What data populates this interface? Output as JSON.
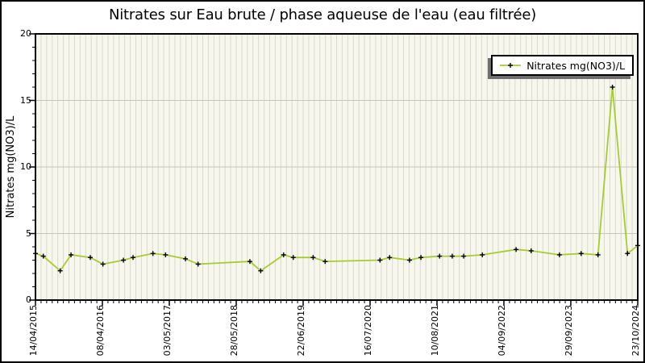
{
  "chart_data": {
    "type": "line",
    "title": "Nitrates sur Eau brute / phase aqueuse de l'eau (eau filtrée)",
    "ylabel": "Nitrates mg(NO3)/L",
    "xlabel": "",
    "ylim": [
      0,
      20
    ],
    "y_ticks": [
      0,
      5,
      10,
      15,
      20
    ],
    "y_minor_tick_interval": 1,
    "x_tick_labels": [
      "14/04/2015",
      "08/04/2016",
      "03/05/2017",
      "28/05/2018",
      "22/06/2019",
      "16/07/2020",
      "10/08/2021",
      "04/09/2022",
      "29/09/2023",
      "23/10/2024"
    ],
    "x_minor_divisions_per_major": 12,
    "h_gridlines_at": [
      5,
      10,
      15
    ],
    "legend": {
      "label": "Nitrates mg(NO3)/L",
      "position": "top-right",
      "marker": "plus"
    },
    "series": [
      {
        "name": "Nitrates mg(NO3)/L",
        "color": "#a6cc32",
        "marker": "plus",
        "marker_color": "#000000",
        "points": [
          {
            "x_frac": 0.0,
            "date_est": "2015-04-14",
            "y": 3.5
          },
          {
            "x_frac": 0.013,
            "date_est": "2015-05-30",
            "y": 3.3
          },
          {
            "x_frac": 0.041,
            "date_est": "2015-09-05",
            "y": 2.2
          },
          {
            "x_frac": 0.059,
            "date_est": "2015-11-05",
            "y": 3.4
          },
          {
            "x_frac": 0.091,
            "date_est": "2016-02-25",
            "y": 3.2
          },
          {
            "x_frac": 0.112,
            "date_est": "2016-05-09",
            "y": 2.7
          },
          {
            "x_frac": 0.146,
            "date_est": "2016-09-03",
            "y": 3.0
          },
          {
            "x_frac": 0.162,
            "date_est": "2016-10-29",
            "y": 3.2
          },
          {
            "x_frac": 0.195,
            "date_est": "2017-02-22",
            "y": 3.5
          },
          {
            "x_frac": 0.216,
            "date_est": "2017-05-03",
            "y": 3.4
          },
          {
            "x_frac": 0.249,
            "date_est": "2017-08-27",
            "y": 3.1
          },
          {
            "x_frac": 0.27,
            "date_est": "2017-11-10",
            "y": 2.7
          },
          {
            "x_frac": 0.356,
            "date_est": "2018-09-04",
            "y": 2.9
          },
          {
            "x_frac": 0.374,
            "date_est": "2018-11-04",
            "y": 2.2
          },
          {
            "x_frac": 0.412,
            "date_est": "2019-03-19",
            "y": 3.4
          },
          {
            "x_frac": 0.428,
            "date_est": "2019-05-14",
            "y": 3.2
          },
          {
            "x_frac": 0.461,
            "date_est": "2019-09-03",
            "y": 3.2
          },
          {
            "x_frac": 0.481,
            "date_est": "2019-11-12",
            "y": 2.9
          },
          {
            "x_frac": 0.572,
            "date_est": "2020-09-23",
            "y": 3.0
          },
          {
            "x_frac": 0.588,
            "date_est": "2020-11-18",
            "y": 3.2
          },
          {
            "x_frac": 0.621,
            "date_est": "2021-03-15",
            "y": 3.0
          },
          {
            "x_frac": 0.64,
            "date_est": "2021-05-19",
            "y": 3.2
          },
          {
            "x_frac": 0.671,
            "date_est": "2021-09-03",
            "y": 3.3
          },
          {
            "x_frac": 0.692,
            "date_est": "2021-11-17",
            "y": 3.3
          },
          {
            "x_frac": 0.711,
            "date_est": "2022-01-21",
            "y": 3.3
          },
          {
            "x_frac": 0.742,
            "date_est": "2022-05-08",
            "y": 3.4
          },
          {
            "x_frac": 0.798,
            "date_est": "2022-11-20",
            "y": 3.8
          },
          {
            "x_frac": 0.823,
            "date_est": "2023-02-16",
            "y": 3.7
          },
          {
            "x_frac": 0.87,
            "date_est": "2023-07-29",
            "y": 3.4
          },
          {
            "x_frac": 0.906,
            "date_est": "2023-12-02",
            "y": 3.5
          },
          {
            "x_frac": 0.934,
            "date_est": "2024-03-09",
            "y": 3.4
          },
          {
            "x_frac": 0.958,
            "date_est": "2024-06-01",
            "y": 16.0
          },
          {
            "x_frac": 0.983,
            "date_est": "2024-08-24",
            "y": 3.5
          },
          {
            "x_frac": 1.0,
            "date_est": "2024-10-23",
            "y": 4.1
          }
        ]
      }
    ],
    "colors": {
      "background": "#ffffff",
      "outer_border": "#000000",
      "plot_bg": "#f7f7ee",
      "stripe": "#d9d9cf",
      "gridline": "#c6c6bb",
      "frame": "#000000",
      "text": "#000000",
      "legend_bg": "#ffffff",
      "legend_shadow": "#6f6f6f"
    }
  }
}
